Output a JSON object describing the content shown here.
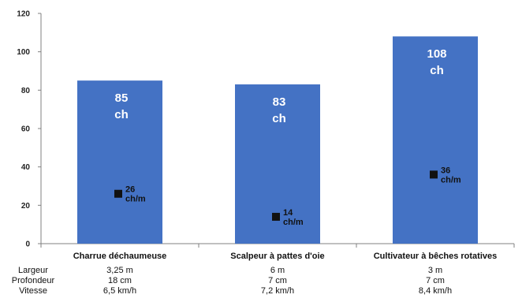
{
  "chart_data": {
    "type": "bar",
    "categories": [
      "Charrue déchaumeuse",
      "Scalpeur à pattes d'oie",
      "Cultivateur à bêches rotatives"
    ],
    "series": [
      {
        "values": [
          85,
          83,
          108
        ],
        "labels": [
          [
            "85",
            "ch"
          ],
          [
            "83",
            "ch"
          ],
          [
            "108",
            "ch"
          ]
        ],
        "color": "#4472C4"
      },
      {
        "type": "scatter",
        "values": [
          26,
          14,
          36
        ],
        "labels": [
          [
            "26",
            "ch/m"
          ],
          [
            "14",
            "ch/m"
          ],
          [
            "36",
            "ch/m"
          ]
        ],
        "color": "#111111"
      }
    ],
    "ylim": [
      0,
      120
    ],
    "yticks": [
      "0",
      "20",
      "40",
      "60",
      "80",
      "100",
      "120"
    ],
    "grid": false,
    "legend": "none"
  },
  "table": {
    "row_labels": [
      "Largeur",
      "Profondeur",
      "Vitesse"
    ],
    "columns": [
      [
        "3,25 m",
        "18 cm",
        "6,5 km/h"
      ],
      [
        "6 m",
        "7 cm",
        "7,2 km/h"
      ],
      [
        "3 m",
        "7 cm",
        "8,4 km/h"
      ]
    ]
  }
}
